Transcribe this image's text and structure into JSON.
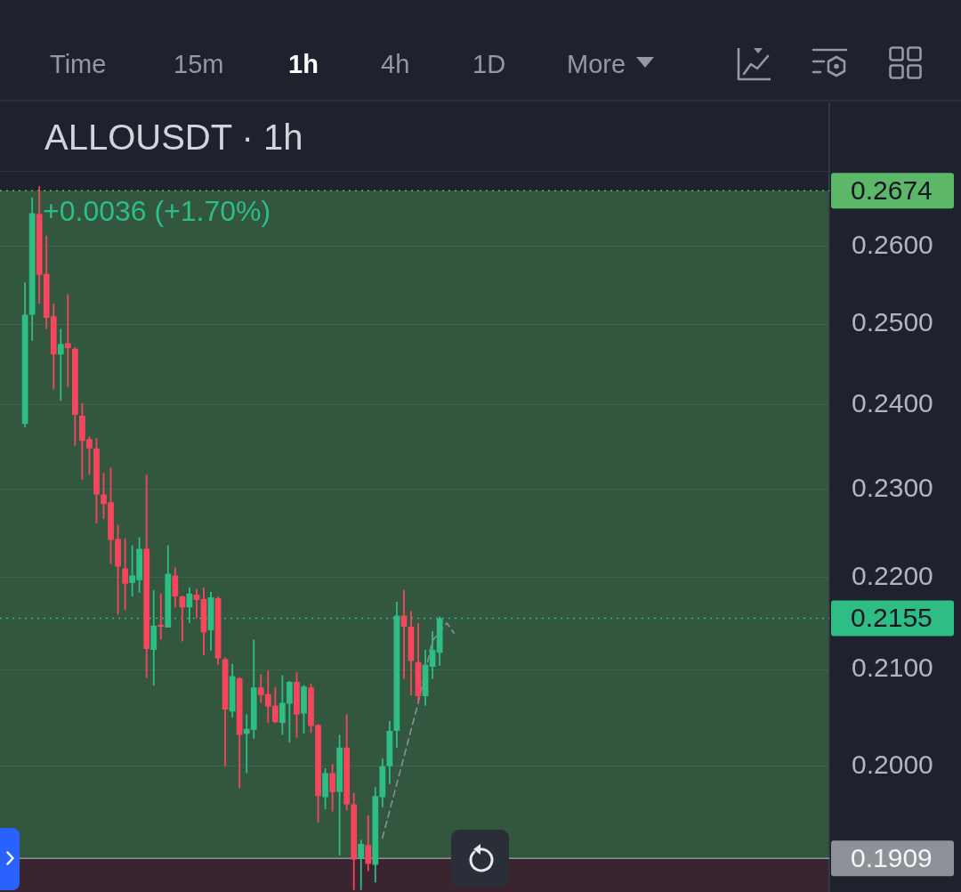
{
  "chart_data": {
    "type": "candlestick",
    "title": "ALLOUSDT · 1h",
    "categories": [
      null,
      null,
      null,
      null,
      null,
      null,
      null,
      null,
      null,
      null,
      null,
      null,
      null,
      null,
      null,
      null,
      null,
      null,
      null,
      null,
      null,
      null,
      null,
      null,
      null,
      null,
      null,
      null,
      null,
      null,
      null,
      null,
      null,
      null,
      null,
      null,
      null,
      null,
      null,
      null,
      null,
      null,
      null,
      null,
      null,
      null,
      null,
      null,
      null,
      null,
      null,
      null,
      null,
      null,
      null,
      null,
      null,
      null,
      null,
      null,
      null,
      null,
      null,
      null,
      null,
      null,
      null,
      null,
      null,
      null,
      null,
      null,
      null,
      null,
      null,
      null,
      null,
      null,
      null,
      null,
      null,
      null,
      null,
      null,
      null,
      null,
      null,
      null,
      null,
      null,
      null,
      null,
      null,
      null,
      null,
      null,
      null,
      null,
      null,
      null,
      null,
      null,
      null,
      null,
      null,
      null,
      null,
      null,
      null,
      null,
      null,
      null,
      null,
      null,
      null,
      null
    ],
    "ohlc": [
      null,
      null,
      null,
      [
        0.2377,
        0.2553,
        0.2373,
        0.2512
      ],
      [
        0.2512,
        0.2665,
        0.2479,
        0.2644
      ],
      [
        0.2643,
        0.268,
        0.2526,
        0.2563
      ],
      [
        0.2564,
        0.2614,
        0.2494,
        0.2508
      ],
      [
        0.251,
        0.2526,
        0.2419,
        0.2462
      ],
      [
        0.2462,
        0.2494,
        0.2405,
        0.2475
      ],
      [
        0.2476,
        0.2538,
        0.2422,
        0.247
      ],
      [
        0.2469,
        0.2471,
        0.2351,
        0.2388
      ],
      [
        0.2387,
        0.2402,
        0.2311,
        0.2357
      ],
      [
        0.2359,
        0.2362,
        0.2317,
        0.2348
      ],
      [
        0.2348,
        0.236,
        0.2261,
        0.2294
      ],
      [
        0.2294,
        0.2319,
        0.2266,
        0.2283
      ],
      [
        0.2285,
        0.2325,
        0.2215,
        0.2242
      ],
      [
        0.2243,
        0.2259,
        0.2159,
        0.2212
      ],
      [
        0.221,
        0.2244,
        0.2164,
        0.2193
      ],
      [
        0.2194,
        0.2236,
        0.2179,
        0.2202
      ],
      [
        0.2197,
        0.2245,
        0.2183,
        0.2232
      ],
      [
        0.2232,
        0.2317,
        0.2091,
        0.2122
      ],
      [
        0.2121,
        0.2186,
        0.2083,
        0.2147
      ],
      [
        0.2148,
        0.2182,
        0.2132,
        0.2146
      ],
      [
        0.2145,
        0.2236,
        0.2145,
        0.2204
      ],
      [
        0.2202,
        0.2211,
        0.2167,
        0.2179
      ],
      [
        0.2179,
        0.218,
        0.213,
        0.2167
      ],
      [
        0.2167,
        0.2189,
        0.215,
        0.2182
      ],
      [
        0.2181,
        0.2187,
        0.2155,
        0.2175
      ],
      [
        0.2176,
        0.2189,
        0.2115,
        0.214
      ],
      [
        0.2142,
        0.2184,
        0.212,
        0.2178
      ],
      [
        0.2177,
        0.2179,
        0.2105,
        0.2112
      ],
      [
        0.2111,
        0.2113,
        0.2,
        0.2058
      ],
      [
        0.2056,
        0.2106,
        0.205,
        0.2093
      ],
      [
        0.2091,
        0.2092,
        0.1978,
        0.2032
      ],
      [
        0.2033,
        0.2053,
        0.1993,
        0.2038
      ],
      [
        0.2037,
        0.2132,
        0.2028,
        0.2081
      ],
      [
        0.2081,
        0.2095,
        0.2065,
        0.2073
      ],
      [
        0.2074,
        0.2099,
        0.2044,
        0.2061
      ],
      [
        0.2062,
        0.2081,
        0.2044,
        0.2045
      ],
      [
        0.2044,
        0.2094,
        0.2032,
        0.2065
      ],
      [
        0.2064,
        0.2088,
        0.2024,
        0.2087
      ],
      [
        0.2087,
        0.2097,
        0.2029,
        0.2053
      ],
      [
        0.2054,
        0.2084,
        0.2033,
        0.2082
      ],
      [
        0.2081,
        0.2085,
        0.2034,
        0.2041
      ],
      [
        0.2042,
        0.2043,
        0.1944,
        0.197
      ],
      [
        0.1969,
        0.1998,
        0.1957,
        0.1993
      ],
      [
        0.1993,
        0.2002,
        0.1955,
        0.1974
      ],
      [
        0.1974,
        0.2032,
        0.1912,
        0.2019
      ],
      [
        0.2019,
        0.2053,
        0.1956,
        0.1962
      ],
      [
        0.1962,
        0.1973,
        0.1879,
        0.1908
      ],
      [
        0.1909,
        0.1927,
        0.1879,
        0.1923
      ],
      [
        0.1922,
        0.1951,
        0.1897,
        0.1904
      ],
      [
        0.1903,
        0.1979,
        0.1886,
        0.197
      ],
      [
        0.1969,
        0.2008,
        0.1959,
        0.2
      ],
      [
        0.2,
        0.2046,
        0.1982,
        0.2036
      ],
      [
        0.2036,
        0.2173,
        0.2019,
        0.2158
      ],
      [
        0.2158,
        0.2186,
        0.209,
        0.2146
      ],
      [
        0.2146,
        0.2163,
        0.2073,
        0.2109
      ],
      [
        0.2108,
        0.215,
        0.2066,
        0.2072
      ],
      [
        0.2072,
        0.2121,
        0.2062,
        0.2105
      ],
      [
        0.2103,
        0.2141,
        0.209,
        0.2121
      ],
      [
        0.2118,
        0.2157,
        0.2104,
        0.2155
      ],
      null,
      null,
      null,
      null,
      null,
      null,
      null,
      null,
      null,
      null,
      null,
      null,
      null,
      null,
      null,
      null,
      null,
      null,
      null,
      null,
      null,
      null,
      null,
      null,
      null,
      null,
      null,
      null,
      null,
      null,
      null,
      null,
      null,
      null,
      null,
      null,
      null,
      null,
      null,
      null,
      null,
      null,
      null,
      null,
      null,
      null,
      null,
      null,
      null,
      null,
      null,
      null,
      null,
      null
    ],
    "colors": [
      null,
      null,
      null,
      "#2ebd85",
      "#2ebd85",
      "#f6465d",
      "#f6465d",
      "#f6465d",
      "#2ebd85",
      "#f6465d",
      "#f6465d",
      "#f6465d",
      "#f6465d",
      "#f6465d",
      "#f6465d",
      "#f6465d",
      "#f6465d",
      "#f6465d",
      "#2ebd85",
      "#2ebd85",
      "#f6465d",
      "#2ebd85",
      "#f6465d",
      "#2ebd85",
      "#f6465d",
      "#f6465d",
      "#2ebd85",
      "#f6465d",
      "#f6465d",
      "#2ebd85",
      "#f6465d",
      "#f6465d",
      "#2ebd85",
      "#f6465d",
      "#2ebd85",
      "#2ebd85",
      "#f6465d",
      "#f6465d",
      "#f6465d",
      "#2ebd85",
      "#2ebd85",
      "#f6465d",
      "#2ebd85",
      "#f6465d",
      "#f6465d",
      "#2ebd85",
      "#f6465d",
      "#2ebd85",
      "#f6465d",
      "#f6465d",
      "#2ebd85",
      "#f6465d",
      "#2ebd85",
      "#2ebd85",
      "#2ebd85",
      "#2ebd85",
      "#f6465d",
      "#f6465d",
      "#f6465d",
      "#2ebd85",
      "#2ebd85",
      "#2ebd85",
      null,
      null,
      null,
      null,
      null,
      null,
      null,
      null,
      null,
      null,
      null,
      null,
      null,
      null,
      null,
      null,
      null,
      null,
      null,
      null,
      null,
      null,
      null,
      null,
      null,
      null,
      null,
      null,
      null,
      null,
      null,
      null,
      null,
      null,
      null,
      null,
      null,
      null,
      null,
      null,
      null,
      null,
      null,
      null,
      null,
      null,
      null,
      null,
      null,
      null,
      null,
      null,
      null,
      null
    ],
    "series": [
      {
        "type": "line",
        "color": "#8b8f9a",
        "line_style": "dashed",
        "values": [
          null,
          null,
          null,
          null,
          null,
          null,
          null,
          null,
          null,
          null,
          null,
          null,
          null,
          null,
          null,
          null,
          null,
          null,
          null,
          null,
          null,
          null,
          null,
          null,
          null,
          null,
          null,
          null,
          null,
          null,
          null,
          null,
          null,
          null,
          null,
          null,
          null,
          null,
          null,
          null,
          null,
          null,
          null,
          null,
          null,
          null,
          null,
          null,
          null,
          null,
          null,
          null,
          null,
          0.1929,
          null,
          null,
          null,
          null,
          0.2065,
          null,
          0.2131,
          null,
          0.215,
          0.2139,
          null,
          null,
          null,
          null,
          null,
          null,
          null,
          null,
          null,
          null,
          null,
          null,
          null,
          null,
          null,
          null,
          null,
          null,
          null,
          null,
          null,
          null,
          null,
          null,
          null,
          null,
          null,
          null,
          null,
          null,
          null,
          null,
          null,
          null,
          null,
          null,
          null,
          null,
          null,
          null,
          null,
          null,
          null,
          null,
          null,
          null,
          null,
          null,
          null,
          null,
          null,
          null
        ]
      }
    ],
    "log": true,
    "ylim": [
      0.1877,
      0.2796
    ],
    "yticks": [
      {
        "value": 0.2,
        "label": "0.2000"
      },
      {
        "value": 0.21,
        "label": "0.2100"
      },
      {
        "value": 0.22,
        "label": "0.2200"
      },
      {
        "value": 0.23,
        "label": "0.2300"
      },
      {
        "value": 0.24,
        "label": "0.2400"
      },
      {
        "value": 0.25,
        "label": "0.2500"
      },
      {
        "value": 0.26,
        "label": "0.2600"
      },
      {
        "value": 0.27,
        "label": null
      }
    ],
    "grid": "y",
    "ref_lines": [
      {
        "axis": "y",
        "value": 0.2674,
        "label": "0.2674",
        "color": "#5cb868",
        "line_style": "dotted"
      },
      {
        "axis": "y",
        "value": 0.2155,
        "label": "0.2155",
        "color": "#2ebd85",
        "line_style": "dotted"
      },
      {
        "axis": "y",
        "value": 0.1909,
        "label": "0.1909",
        "color": "#8e9197"
      }
    ],
    "bands": [
      {
        "axis": "y",
        "from": 0.1909,
        "to": 0.2674,
        "color": "#33563f"
      },
      {
        "axis": "y",
        "from": 0.1877,
        "to": 0.1909,
        "color": "#3a2430"
      }
    ],
    "annotations": [
      "+0.0036 (+1.70%)",
      "Time",
      "15m",
      "1h",
      "4h",
      "1D",
      "More"
    ]
  }
}
